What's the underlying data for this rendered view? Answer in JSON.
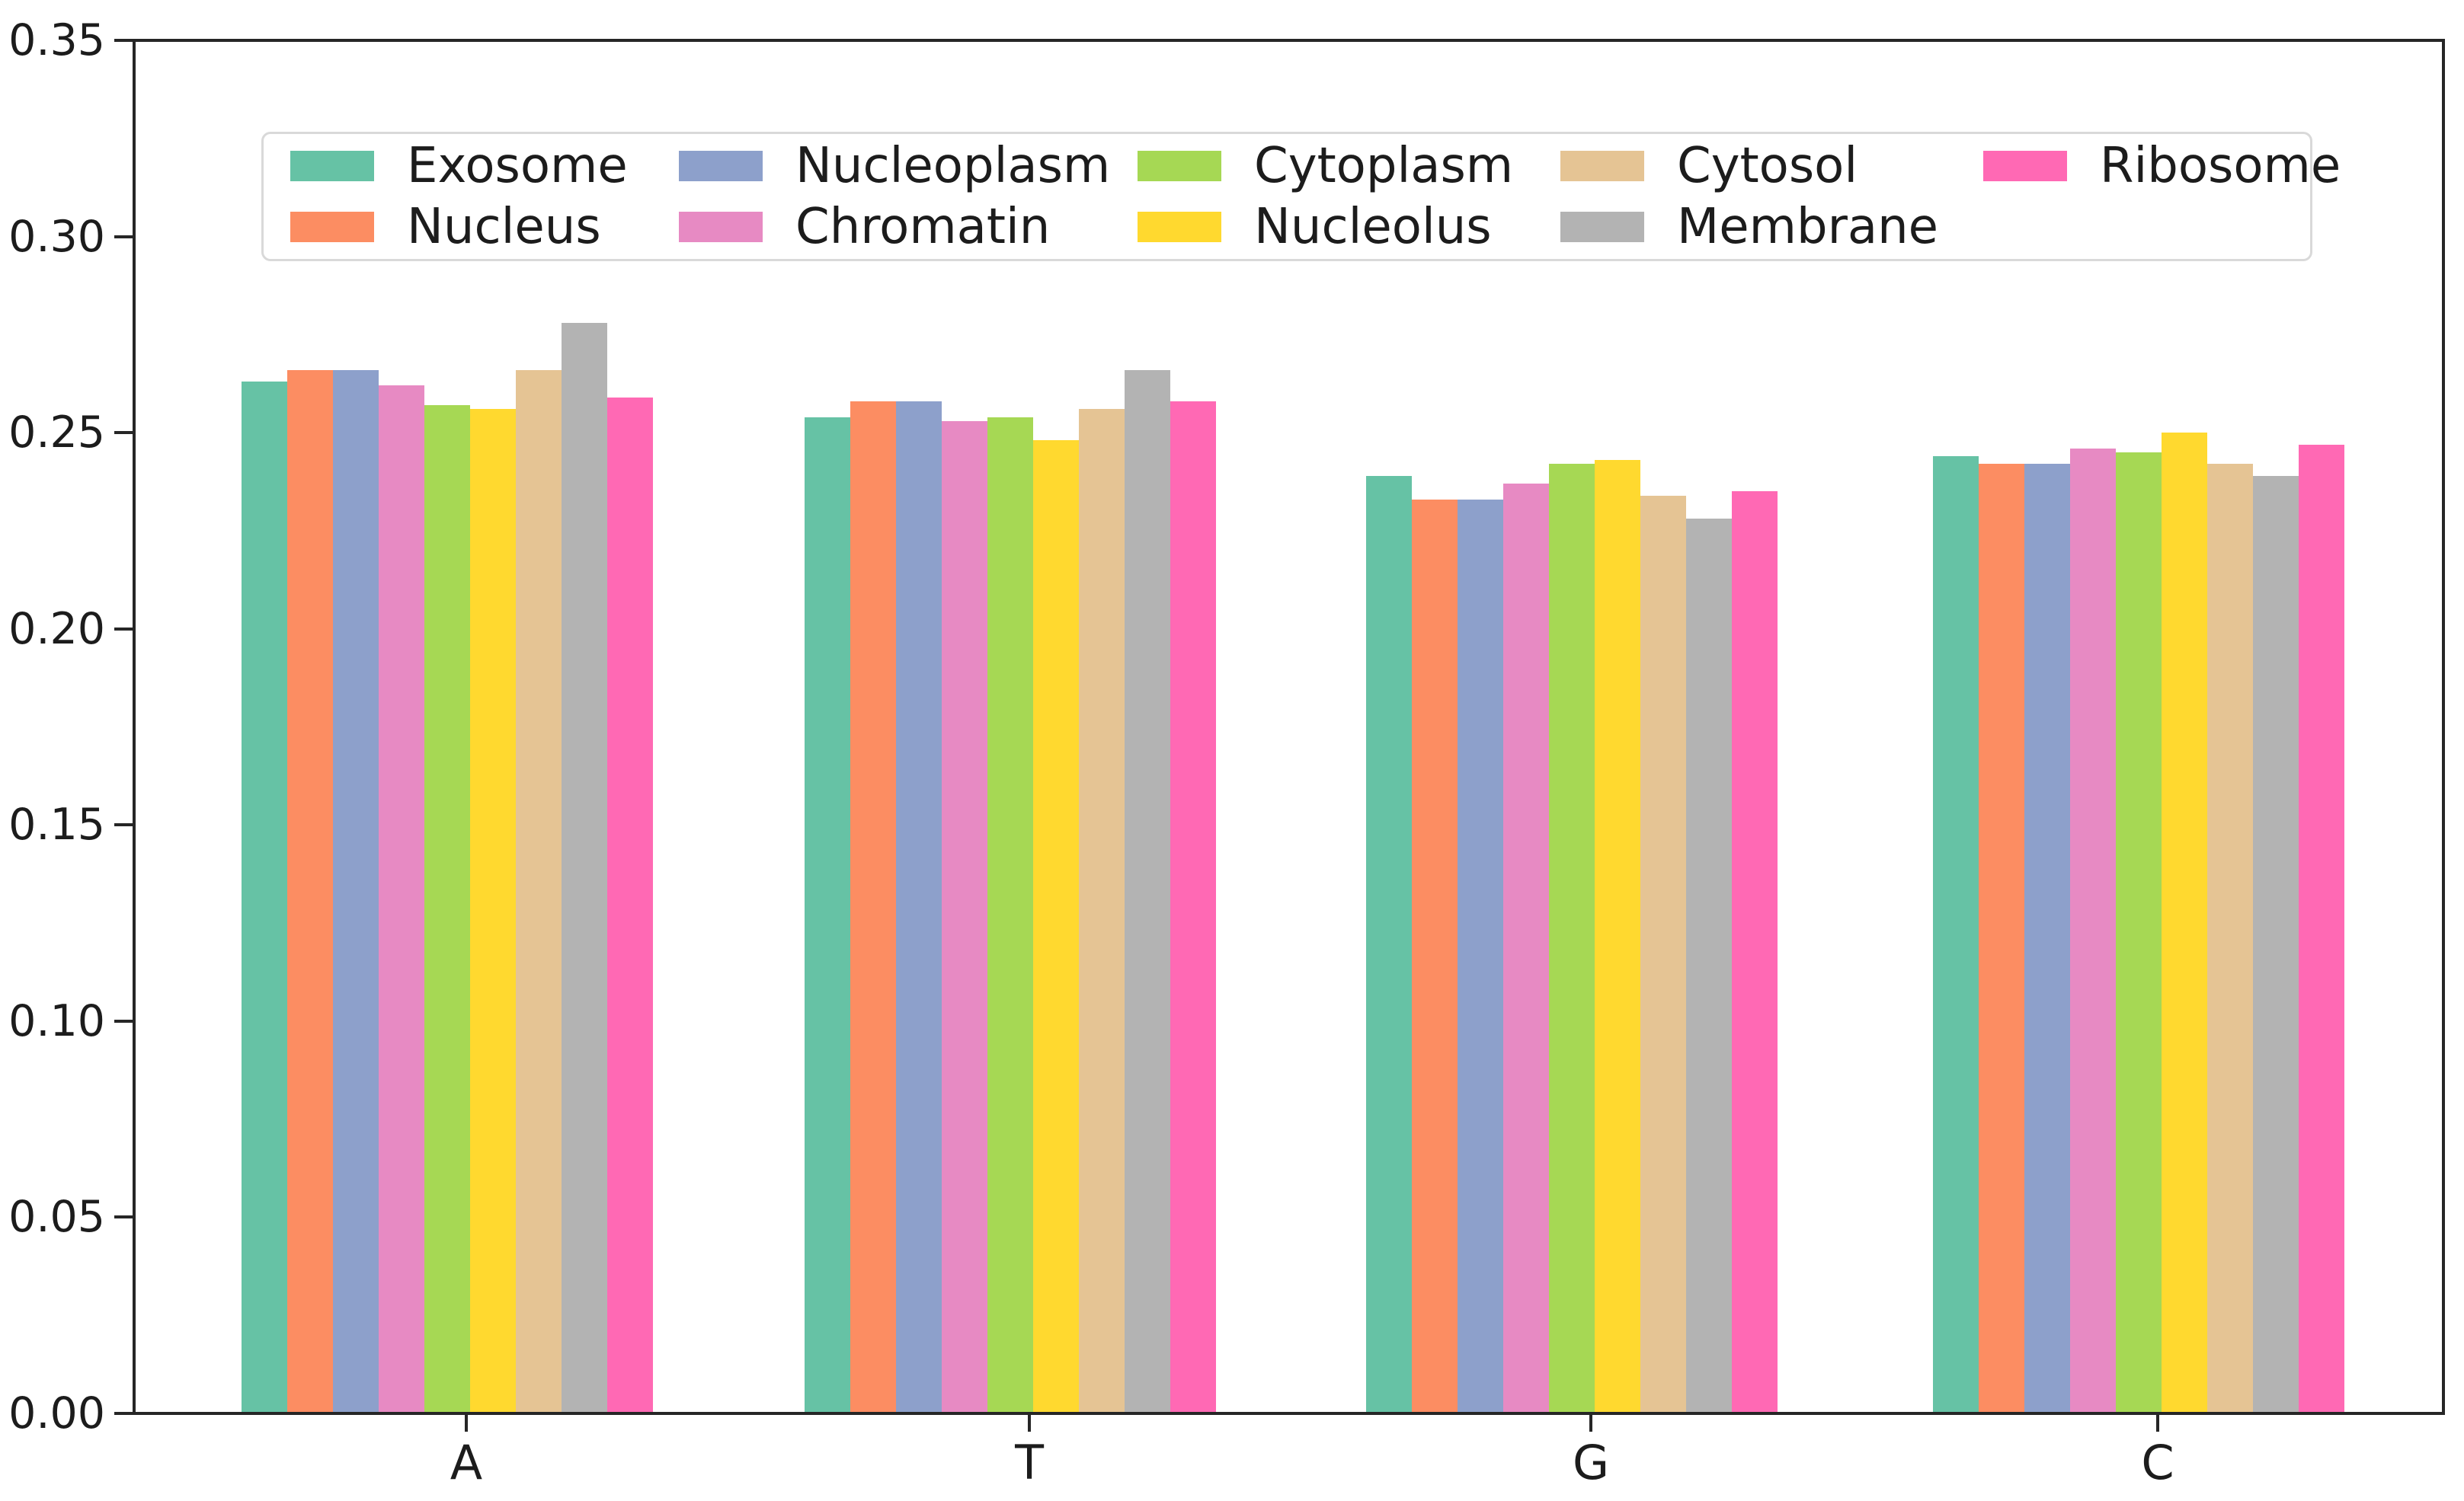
{
  "chart_data": {
    "type": "bar",
    "title": "",
    "xlabel": "",
    "ylabel": "",
    "categories": [
      "A",
      "T",
      "G",
      "C"
    ],
    "ylim": [
      0,
      0.35
    ],
    "yticks": [
      "0.00",
      "0.05",
      "0.10",
      "0.15",
      "0.20",
      "0.25",
      "0.30",
      "0.35"
    ],
    "grid": false,
    "legend_position": "upper center inside plot, 2 rows x 5 columns",
    "series": [
      {
        "name": "Exosome",
        "color": "#66c2a5",
        "values": [
          0.263,
          0.254,
          0.239,
          0.244
        ]
      },
      {
        "name": "Nucleus",
        "color": "#fc8d62",
        "values": [
          0.266,
          0.258,
          0.233,
          0.242
        ]
      },
      {
        "name": "Nucleoplasm",
        "color": "#8da0cb",
        "values": [
          0.266,
          0.258,
          0.233,
          0.242
        ]
      },
      {
        "name": "Chromatin",
        "color": "#e78ac3",
        "values": [
          0.262,
          0.253,
          0.237,
          0.246
        ]
      },
      {
        "name": "Cytoplasm",
        "color": "#a6d854",
        "values": [
          0.257,
          0.254,
          0.242,
          0.245
        ]
      },
      {
        "name": "Nucleolus",
        "color": "#ffd92f",
        "values": [
          0.256,
          0.248,
          0.243,
          0.25
        ]
      },
      {
        "name": "Cytosol",
        "color": "#e5c494",
        "values": [
          0.266,
          0.256,
          0.234,
          0.242
        ]
      },
      {
        "name": "Membrane",
        "color": "#b3b3b3",
        "values": [
          0.278,
          0.266,
          0.228,
          0.239
        ]
      },
      {
        "name": "Ribosome",
        "color": "#ff69b4",
        "values": [
          0.259,
          0.258,
          0.235,
          0.247
        ]
      }
    ]
  }
}
